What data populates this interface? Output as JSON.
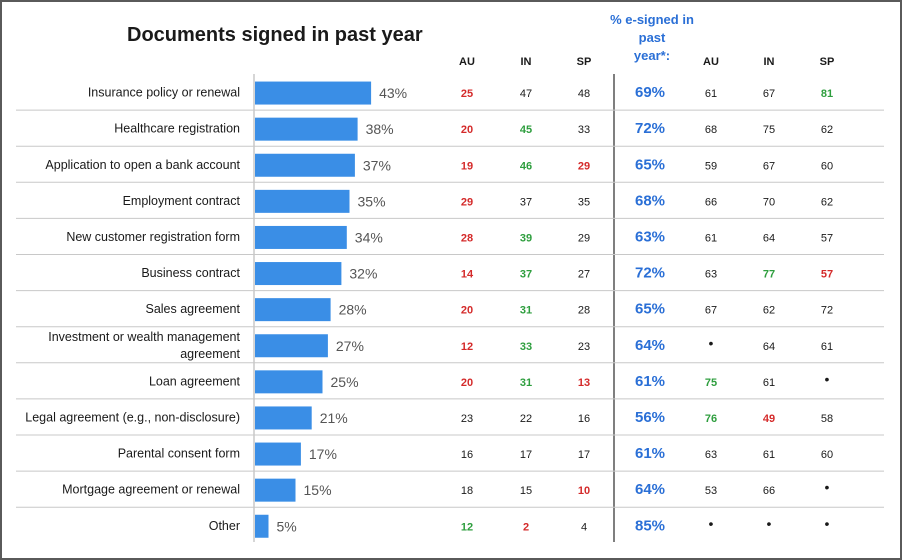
{
  "colors": {
    "bar": "#3a8ee6",
    "low": "#d42a2a",
    "high": "#2e9e3e",
    "normal": "#1a1a1a",
    "pct": "#2a6fd6"
  },
  "chart_data": {
    "type": "bar",
    "orientation": "horizontal",
    "title": "Documents signed in past year",
    "esign_header": [
      "% e-signed in",
      "past",
      "year*:"
    ],
    "country_headers": [
      "AU",
      "IN",
      "SP"
    ],
    "categories": [
      [
        "Insurance policy or renewal"
      ],
      [
        "Healthcare registration"
      ],
      [
        "Application to open a bank account"
      ],
      [
        "Employment contract"
      ],
      [
        "New customer registration form"
      ],
      [
        "Business contract"
      ],
      [
        "Sales agreement"
      ],
      [
        "Investment or wealth management",
        "agreement"
      ],
      [
        "Loan agreement"
      ],
      [
        "Legal agreement (e.g., non-disclosure)"
      ],
      [
        "Parental consent form"
      ],
      [
        "Mortgage agreement or renewal"
      ],
      [
        "Other"
      ]
    ],
    "values": [
      43,
      38,
      37,
      35,
      34,
      32,
      28,
      27,
      25,
      21,
      17,
      15,
      5
    ],
    "value_labels": [
      "43%",
      "38%",
      "37%",
      "35%",
      "34%",
      "32%",
      "28%",
      "27%",
      "25%",
      "21%",
      "17%",
      "15%",
      "5%"
    ],
    "signed_by_country": [
      [
        [
          "25",
          "low"
        ],
        [
          "47",
          "normal"
        ],
        [
          "48",
          "normal"
        ]
      ],
      [
        [
          "20",
          "low"
        ],
        [
          "45",
          "high"
        ],
        [
          "33",
          "normal"
        ]
      ],
      [
        [
          "19",
          "low"
        ],
        [
          "46",
          "high"
        ],
        [
          "29",
          "low"
        ]
      ],
      [
        [
          "29",
          "low"
        ],
        [
          "37",
          "normal"
        ],
        [
          "35",
          "normal"
        ]
      ],
      [
        [
          "28",
          "low"
        ],
        [
          "39",
          "high"
        ],
        [
          "29",
          "normal"
        ]
      ],
      [
        [
          "14",
          "low"
        ],
        [
          "37",
          "high"
        ],
        [
          "27",
          "normal"
        ]
      ],
      [
        [
          "20",
          "low"
        ],
        [
          "31",
          "high"
        ],
        [
          "28",
          "normal"
        ]
      ],
      [
        [
          "12",
          "low"
        ],
        [
          "33",
          "high"
        ],
        [
          "23",
          "normal"
        ]
      ],
      [
        [
          "20",
          "low"
        ],
        [
          "31",
          "high"
        ],
        [
          "13",
          "low"
        ]
      ],
      [
        [
          "23",
          "normal"
        ],
        [
          "22",
          "normal"
        ],
        [
          "16",
          "normal"
        ]
      ],
      [
        [
          "16",
          "normal"
        ],
        [
          "17",
          "normal"
        ],
        [
          "17",
          "normal"
        ]
      ],
      [
        [
          "18",
          "normal"
        ],
        [
          "15",
          "normal"
        ],
        [
          "10",
          "low"
        ]
      ],
      [
        [
          "12",
          "high"
        ],
        [
          "2",
          "low"
        ],
        [
          "4",
          "normal"
        ]
      ]
    ],
    "esigned_pct": [
      "69%",
      "72%",
      "65%",
      "68%",
      "63%",
      "72%",
      "65%",
      "64%",
      "61%",
      "56%",
      "61%",
      "64%",
      "85%"
    ],
    "esigned_by_country": [
      [
        [
          "61",
          "normal"
        ],
        [
          "67",
          "normal"
        ],
        [
          "81",
          "high"
        ]
      ],
      [
        [
          "68",
          "normal"
        ],
        [
          "75",
          "normal"
        ],
        [
          "62",
          "normal"
        ]
      ],
      [
        [
          "59",
          "normal"
        ],
        [
          "67",
          "normal"
        ],
        [
          "60",
          "normal"
        ]
      ],
      [
        [
          "66",
          "normal"
        ],
        [
          "70",
          "normal"
        ],
        [
          "62",
          "normal"
        ]
      ],
      [
        [
          "61",
          "normal"
        ],
        [
          "64",
          "normal"
        ],
        [
          "57",
          "normal"
        ]
      ],
      [
        [
          "63",
          "normal"
        ],
        [
          "77",
          "high"
        ],
        [
          "57",
          "low"
        ]
      ],
      [
        [
          "67",
          "normal"
        ],
        [
          "62",
          "normal"
        ],
        [
          "72",
          "normal"
        ]
      ],
      [
        [
          "•",
          "normal"
        ],
        [
          "64",
          "normal"
        ],
        [
          "61",
          "normal"
        ]
      ],
      [
        [
          "75",
          "high"
        ],
        [
          "61",
          "normal"
        ],
        [
          "•",
          "normal"
        ]
      ],
      [
        [
          "76",
          "high"
        ],
        [
          "49",
          "low"
        ],
        [
          "58",
          "normal"
        ]
      ],
      [
        [
          "63",
          "normal"
        ],
        [
          "61",
          "normal"
        ],
        [
          "60",
          "normal"
        ]
      ],
      [
        [
          "53",
          "normal"
        ],
        [
          "66",
          "normal"
        ],
        [
          "•",
          "normal"
        ]
      ],
      [
        [
          "•",
          "normal"
        ],
        [
          "•",
          "normal"
        ],
        [
          "•",
          "normal"
        ]
      ]
    ],
    "xlim": [
      0,
      100
    ],
    "grid": true
  }
}
